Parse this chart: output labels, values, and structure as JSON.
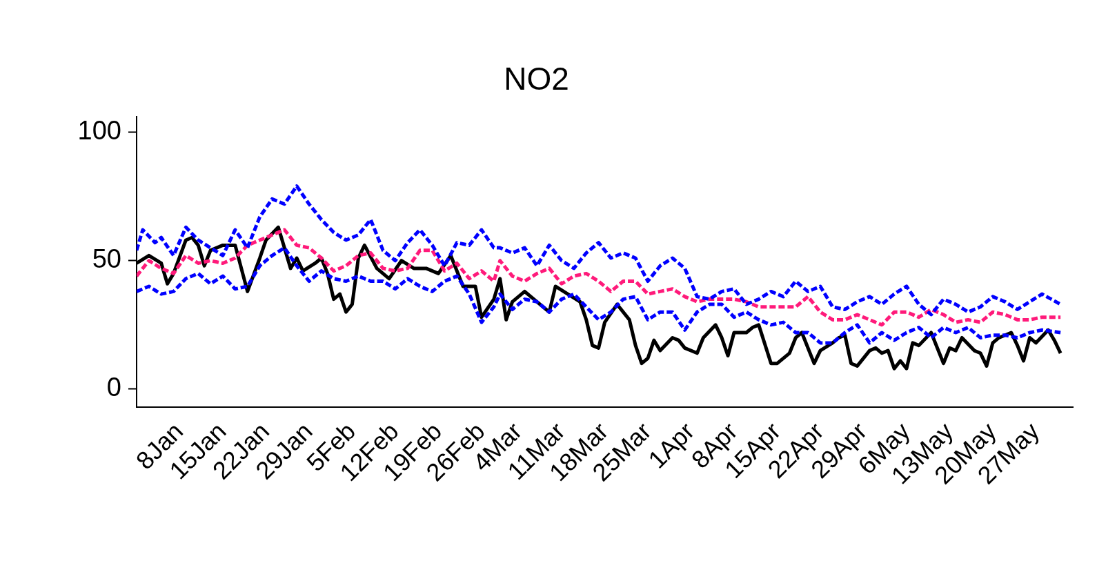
{
  "chart_data": {
    "type": "line",
    "title": "NO2",
    "marker": "none",
    "grid": false,
    "legend": false,
    "xlim": [
      "--01-01",
      "--06-02"
    ],
    "ylim": [
      -7,
      106
    ],
    "yticks": [
      0,
      50,
      100
    ],
    "xticks": [
      {
        "value": "--01-08",
        "label": "8Jan"
      },
      {
        "value": "--01-15",
        "label": "15Jan"
      },
      {
        "value": "--01-22",
        "label": "22Jan"
      },
      {
        "value": "--01-29",
        "label": "29Jan"
      },
      {
        "value": "--02-05",
        "label": "5Feb"
      },
      {
        "value": "--02-12",
        "label": "12Feb"
      },
      {
        "value": "--02-19",
        "label": "19Feb"
      },
      {
        "value": "--02-26",
        "label": "26Feb"
      },
      {
        "value": "--03-04",
        "label": "4Mar"
      },
      {
        "value": "--03-11",
        "label": "11Mar"
      },
      {
        "value": "--03-18",
        "label": "18Mar"
      },
      {
        "value": "--03-25",
        "label": "25Mar"
      },
      {
        "value": "--04-01",
        "label": "1Apr"
      },
      {
        "value": "--04-08",
        "label": "8Apr"
      },
      {
        "value": "--04-15",
        "label": "15Apr"
      },
      {
        "value": "--04-22",
        "label": "22Apr"
      },
      {
        "value": "--04-29",
        "label": "29Apr"
      },
      {
        "value": "--05-06",
        "label": "6May"
      },
      {
        "value": "--05-13",
        "label": "13May"
      },
      {
        "value": "--05-20",
        "label": "20May"
      },
      {
        "value": "--05-27",
        "label": "27May"
      }
    ],
    "series": [
      {
        "color": "#0000ff",
        "line_style": "dashed",
        "x": [
          "--01-01",
          "--01-02",
          "--01-04",
          "--01-05",
          "--01-07",
          "--01-09",
          "--01-11",
          "--01-13",
          "--01-15",
          "--01-17",
          "--01-19",
          "--01-21",
          "--01-23",
          "--01-25",
          "--01-27",
          "--01-29",
          "--01-31",
          "--02-02",
          "--02-04",
          "--02-06",
          "--02-08",
          "--02-10",
          "--02-12",
          "--02-14",
          "--02-16",
          "--02-18",
          "--02-20",
          "--02-22",
          "--02-24",
          "--02-26",
          "--02-28",
          "--03-01",
          "--03-03",
          "--03-05",
          "--03-07",
          "--03-09",
          "--03-11",
          "--03-13",
          "--03-15",
          "--03-17",
          "--03-19",
          "--03-21",
          "--03-23",
          "--03-25",
          "--03-27",
          "--03-29",
          "--03-31",
          "--04-02",
          "--04-04",
          "--04-06",
          "--04-08",
          "--04-10",
          "--04-12",
          "--04-14",
          "--04-16",
          "--04-18",
          "--04-20",
          "--04-22",
          "--04-24",
          "--04-26",
          "--04-28",
          "--04-30",
          "--05-02",
          "--05-04",
          "--05-06",
          "--05-08",
          "--05-10",
          "--05-12",
          "--05-14",
          "--05-16",
          "--05-18",
          "--05-20",
          "--05-22",
          "--05-24",
          "--05-26",
          "--05-28",
          "--05-31"
        ],
        "values": [
          54,
          62,
          57,
          59,
          52,
          63,
          58,
          55,
          52,
          62,
          55,
          67,
          74,
          72,
          79,
          72,
          66,
          61,
          58,
          60,
          66,
          54,
          50,
          57,
          62,
          56,
          48,
          57,
          56,
          62,
          55,
          55,
          53,
          55,
          48,
          56,
          50,
          47,
          53,
          57,
          51,
          53,
          51,
          42,
          48,
          51,
          47,
          36,
          35,
          38,
          39,
          33,
          35,
          38,
          36,
          42,
          38,
          40,
          32,
          31,
          34,
          36,
          33,
          37,
          40,
          33,
          29,
          35,
          33,
          30,
          32,
          36,
          34,
          31,
          34,
          37,
          33
        ]
      },
      {
        "color": "#ff1a7a",
        "line_style": "dashed",
        "x": [
          "--01-01",
          "--01-03",
          "--01-05",
          "--01-07",
          "--01-09",
          "--01-11",
          "--01-13",
          "--01-15",
          "--01-17",
          "--01-19",
          "--01-21",
          "--01-23",
          "--01-25",
          "--01-27",
          "--01-29",
          "--01-31",
          "--02-02",
          "--02-04",
          "--02-06",
          "--02-08",
          "--02-10",
          "--02-12",
          "--02-14",
          "--02-16",
          "--02-18",
          "--02-20",
          "--02-22",
          "--02-24",
          "--02-26",
          "--02-28",
          "--03-01",
          "--03-03",
          "--03-05",
          "--03-07",
          "--03-09",
          "--03-11",
          "--03-13",
          "--03-15",
          "--03-17",
          "--03-19",
          "--03-21",
          "--03-23",
          "--03-25",
          "--03-27",
          "--03-29",
          "--03-31",
          "--04-02",
          "--04-04",
          "--04-06",
          "--04-08",
          "--04-10",
          "--04-12",
          "--04-14",
          "--04-16",
          "--04-18",
          "--04-20",
          "--04-22",
          "--04-24",
          "--04-26",
          "--04-28",
          "--04-30",
          "--05-02",
          "--05-04",
          "--05-06",
          "--05-08",
          "--05-10",
          "--05-12",
          "--05-14",
          "--05-16",
          "--05-18",
          "--05-20",
          "--05-22",
          "--05-24",
          "--05-26",
          "--05-28",
          "--05-31"
        ],
        "values": [
          44,
          50,
          47,
          45,
          52,
          49,
          50,
          49,
          51,
          56,
          58,
          60,
          62,
          56,
          55,
          51,
          46,
          48,
          52,
          53,
          47,
          46,
          47,
          54,
          54,
          46,
          49,
          43,
          46,
          42,
          50,
          44,
          42,
          45,
          47,
          41,
          44,
          45,
          42,
          38,
          42,
          42,
          37,
          38,
          39,
          36,
          34,
          35,
          35,
          35,
          34,
          32,
          32,
          32,
          32,
          36,
          30,
          27,
          27,
          29,
          27,
          25,
          30,
          30,
          28,
          31,
          29,
          26,
          27,
          26,
          30,
          29,
          27,
          27,
          28,
          28
        ]
      },
      {
        "color": "#0000ff",
        "line_style": "dashed",
        "x": [
          "--01-01",
          "--01-03",
          "--01-05",
          "--01-07",
          "--01-09",
          "--01-11",
          "--01-13",
          "--01-15",
          "--01-17",
          "--01-19",
          "--01-21",
          "--01-23",
          "--01-25",
          "--01-27",
          "--01-29",
          "--01-31",
          "--02-02",
          "--02-04",
          "--02-06",
          "--02-08",
          "--02-10",
          "--02-12",
          "--02-14",
          "--02-16",
          "--02-18",
          "--02-20",
          "--02-22",
          "--02-24",
          "--02-26",
          "--02-28",
          "--03-01",
          "--03-03",
          "--03-05",
          "--03-07",
          "--03-09",
          "--03-11",
          "--03-13",
          "--03-15",
          "--03-17",
          "--03-19",
          "--03-21",
          "--03-23",
          "--03-25",
          "--03-27",
          "--03-29",
          "--03-31",
          "--04-02",
          "--04-04",
          "--04-06",
          "--04-08",
          "--04-10",
          "--04-12",
          "--04-14",
          "--04-16",
          "--04-18",
          "--04-20",
          "--04-22",
          "--04-24",
          "--04-26",
          "--04-28",
          "--04-30",
          "--05-02",
          "--05-04",
          "--05-06",
          "--05-08",
          "--05-10",
          "--05-12",
          "--05-14",
          "--05-16",
          "--05-18",
          "--05-20",
          "--05-22",
          "--05-24",
          "--05-26",
          "--05-28",
          "--05-31"
        ],
        "values": [
          38,
          40,
          37,
          38,
          43,
          45,
          41,
          44,
          39,
          40,
          48,
          52,
          55,
          48,
          42,
          46,
          43,
          42,
          44,
          42,
          42,
          39,
          43,
          40,
          38,
          42,
          44,
          37,
          26,
          32,
          37,
          31,
          35,
          34,
          30,
          35,
          37,
          32,
          27,
          30,
          35,
          36,
          27,
          30,
          30,
          23,
          30,
          33,
          33,
          28,
          30,
          27,
          25,
          26,
          22,
          22,
          18,
          18,
          22,
          25,
          18,
          22,
          19,
          22,
          24,
          20,
          24,
          22,
          24,
          20,
          21,
          21,
          20,
          22,
          23,
          22
        ]
      },
      {
        "color": "#000000",
        "line_style": "solid",
        "x": [
          "--01-01",
          "--01-03",
          "--01-05",
          "--01-06",
          "--01-07",
          "--01-09",
          "--01-10",
          "--01-11",
          "--01-12",
          "--01-13",
          "--01-15",
          "--01-17",
          "--01-19",
          "--01-21",
          "--01-22",
          "--01-24",
          "--01-26",
          "--01-27",
          "--01-28",
          "--01-30",
          "--01-31",
          "--02-01",
          "--02-02",
          "--02-03",
          "--02-04",
          "--02-05",
          "--02-06",
          "--02-07",
          "--02-09",
          "--02-11",
          "--02-13",
          "--02-15",
          "--02-17",
          "--02-19",
          "--02-21",
          "--02-23",
          "--02-25",
          "--02-26",
          "--02-28",
          "--03-01",
          "--03-02",
          "--03-03",
          "--03-05",
          "--03-07",
          "--03-09",
          "--03-10",
          "--03-12",
          "--03-14",
          "--03-15",
          "--03-16",
          "--03-17",
          "--03-18",
          "--03-20",
          "--03-22",
          "--03-23",
          "--03-24",
          "--03-25",
          "--03-26",
          "--03-27",
          "--03-29",
          "--03-30",
          "--03-31",
          "--04-02",
          "--04-03",
          "--04-05",
          "--04-06",
          "--04-07",
          "--04-08",
          "--04-10",
          "--04-11",
          "--04-12",
          "--04-14",
          "--04-15",
          "--04-17",
          "--04-18",
          "--04-19",
          "--04-21",
          "--04-22",
          "--04-24",
          "--04-25",
          "--04-26",
          "--04-27",
          "--04-28",
          "--04-30",
          "--05-01",
          "--05-02",
          "--05-03",
          "--05-04",
          "--05-05",
          "--05-06",
          "--05-07",
          "--05-08",
          "--05-10",
          "--05-12",
          "--05-13",
          "--05-14",
          "--05-15",
          "--05-17",
          "--05-18",
          "--05-19",
          "--05-20",
          "--05-21",
          "--05-23",
          "--05-24",
          "--05-25",
          "--05-26",
          "--05-27",
          "--05-29",
          "--05-30",
          "--05-31"
        ],
        "values": [
          49,
          52,
          49,
          41,
          45,
          58,
          59,
          56,
          48,
          54,
          56,
          56,
          38,
          51,
          58,
          63,
          47,
          51,
          46,
          49,
          51,
          45,
          35,
          37,
          30,
          33,
          51,
          56,
          47,
          43,
          50,
          47,
          47,
          45,
          52,
          40,
          40,
          28,
          35,
          43,
          27,
          34,
          38,
          34,
          30,
          40,
          37,
          34,
          27,
          17,
          16,
          26,
          33,
          27,
          17,
          10,
          12,
          19,
          15,
          20,
          19,
          16,
          14,
          20,
          25,
          20,
          13,
          22,
          22,
          24,
          25,
          10,
          10,
          14,
          20,
          22,
          10,
          15,
          18,
          20,
          21,
          10,
          9,
          15,
          16,
          14,
          15,
          8,
          11,
          8,
          18,
          17,
          22,
          10,
          16,
          15,
          20,
          15,
          14,
          9,
          18,
          20,
          22,
          17,
          11,
          20,
          18,
          23,
          19,
          14
        ]
      }
    ]
  }
}
